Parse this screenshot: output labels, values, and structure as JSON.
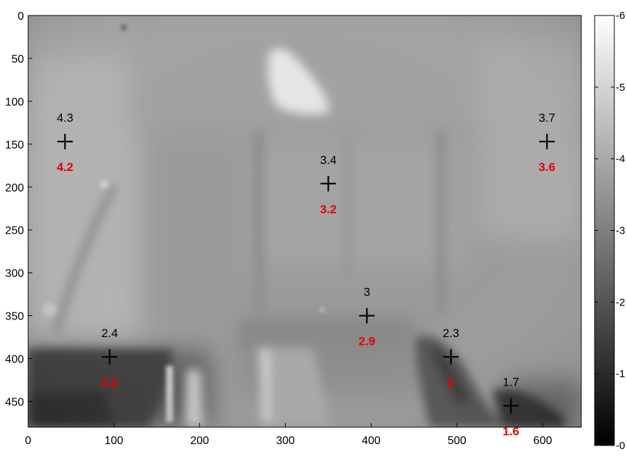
{
  "chart_data": {
    "type": "heatmap",
    "title": "",
    "xlabel": "",
    "ylabel": "",
    "xlim": [
      0,
      645
    ],
    "ylim": [
      480,
      0
    ],
    "x_ticks": [
      0,
      100,
      200,
      300,
      400,
      500,
      600
    ],
    "y_ticks": [
      0,
      50,
      100,
      150,
      200,
      250,
      300,
      350,
      400,
      450
    ],
    "colorbar": {
      "range": [
        0,
        6
      ],
      "ticks": [
        0,
        1,
        2,
        3,
        4,
        5,
        6
      ],
      "colormap": "gray"
    },
    "points": [
      {
        "x": 43,
        "y": 147,
        "value_top": "4.3",
        "value_bottom": "4.2"
      },
      {
        "x": 350,
        "y": 196,
        "value_top": "3.4",
        "value_bottom": "3.2"
      },
      {
        "x": 605,
        "y": 147,
        "value_top": "3.7",
        "value_bottom": "3.6"
      },
      {
        "x": 95,
        "y": 398,
        "value_top": "2.4",
        "value_bottom": "2.2"
      },
      {
        "x": 395,
        "y": 350,
        "value_top": "3",
        "value_bottom": "2.9"
      },
      {
        "x": 493,
        "y": 398,
        "value_top": "2.3",
        "value_bottom": "2"
      },
      {
        "x": 563,
        "y": 455,
        "value_top": "1.7",
        "value_bottom": "1.6"
      }
    ],
    "colors": {
      "top_label": "#000000",
      "bottom_label": "#e60000",
      "marker": "#000000"
    }
  }
}
